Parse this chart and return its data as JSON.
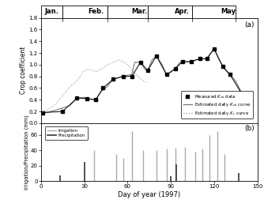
{
  "title_a": "(a)",
  "title_b": "(b)",
  "xlabel": "Day of year (1997)",
  "ylabel_a": "Crop coefficient",
  "ylabel_b": "Irrigation/Precipitation (mm)",
  "xlim": [
    0,
    150
  ],
  "ylim_a": [
    0.0,
    1.8
  ],
  "ylim_b": [
    0,
    75
  ],
  "yticks_a": [
    0.0,
    0.2,
    0.4,
    0.6,
    0.8,
    1.0,
    1.2,
    1.4,
    1.6,
    1.8
  ],
  "yticks_b": [
    0,
    20,
    40,
    60
  ],
  "xticks": [
    0,
    30,
    60,
    90,
    120,
    150
  ],
  "month_labels": [
    "Jan.",
    "Feb.",
    "Mar.",
    "Apr.",
    "May"
  ],
  "month_centers": [
    7.5,
    38,
    68,
    98,
    130
  ],
  "month_boundaries": [
    15,
    46,
    74,
    105,
    135
  ],
  "kcb_measured_x": [
    1,
    15,
    25,
    32,
    38,
    43,
    50,
    57,
    63,
    69,
    74,
    80,
    87,
    93,
    98,
    104,
    110,
    115,
    120,
    126,
    131,
    140
  ],
  "kcb_measured_y": [
    0.18,
    0.2,
    0.43,
    0.42,
    0.4,
    0.6,
    0.75,
    0.8,
    0.8,
    1.04,
    0.9,
    1.15,
    0.83,
    0.93,
    1.05,
    1.05,
    1.1,
    1.1,
    1.27,
    0.97,
    0.83,
    0.47
  ],
  "kcb_curve_x": [
    1,
    5,
    10,
    15,
    20,
    25,
    30,
    32,
    35,
    38,
    42,
    45,
    50,
    54,
    57,
    60,
    63,
    65,
    69,
    72,
    74,
    77,
    80,
    84,
    87,
    90,
    93,
    96,
    98,
    101,
    104,
    107,
    110,
    113,
    115,
    117,
    120,
    123,
    126,
    128,
    131,
    135,
    140,
    143
  ],
  "kcb_curve_y": [
    0.18,
    0.19,
    0.22,
    0.26,
    0.3,
    0.43,
    0.44,
    0.42,
    0.41,
    0.4,
    0.55,
    0.6,
    0.75,
    0.78,
    0.8,
    0.82,
    0.83,
    1.04,
    1.04,
    0.92,
    0.9,
    1.08,
    1.15,
    1.0,
    0.83,
    0.87,
    0.93,
    1.03,
    1.05,
    1.05,
    1.05,
    1.08,
    1.1,
    1.1,
    1.1,
    1.18,
    1.27,
    1.1,
    0.97,
    0.9,
    0.83,
    0.72,
    0.47,
    0.45
  ],
  "kc_curve_x": [
    1,
    4,
    8,
    12,
    16,
    20,
    24,
    28,
    30,
    33,
    36,
    38,
    40,
    42,
    44,
    46,
    48,
    50,
    52,
    54,
    56,
    58,
    60,
    62,
    64,
    66,
    68,
    70,
    72,
    74
  ],
  "kc_curve_y": [
    0.2,
    0.22,
    0.28,
    0.38,
    0.5,
    0.62,
    0.7,
    0.82,
    0.9,
    0.92,
    0.9,
    0.88,
    0.9,
    0.93,
    0.96,
    1.0,
    1.02,
    1.04,
    1.06,
    1.08,
    1.06,
    1.04,
    1.0,
    0.94,
    0.88,
    0.83,
    0.78,
    0.74,
    0.71,
    0.7
  ],
  "irrigation_days": [
    37,
    52,
    57,
    63,
    71,
    80,
    87,
    93,
    100,
    107,
    112,
    117,
    122,
    127
  ],
  "irrigation_amounts": [
    40,
    35,
    30,
    65,
    40,
    40,
    42,
    43,
    44,
    38,
    42,
    60,
    65,
    35
  ],
  "precip_days": [
    13,
    30,
    90,
    94,
    137
  ],
  "precip_amounts": [
    7,
    25,
    6,
    22,
    10
  ],
  "irrig_color": "#aaaaaa",
  "precip_color": "#333333"
}
